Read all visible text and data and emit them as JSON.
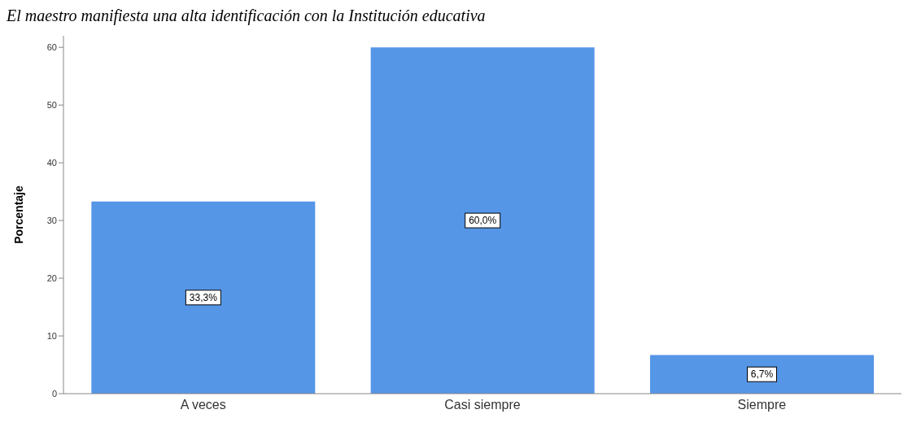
{
  "chart_data": {
    "type": "bar",
    "title": "El maestro manifiesta una alta identificación con la Institución educativa",
    "ylabel": "Porcentaje",
    "categories": [
      "A veces",
      "Casi siempre",
      "Siempre"
    ],
    "values": [
      33.3,
      60.0,
      6.7
    ],
    "value_labels": [
      "33,3%",
      "60,0%",
      "6,7%"
    ],
    "color": "#5596e6",
    "ylim": [
      0,
      62
    ],
    "yticks": [
      0,
      10,
      20,
      30,
      40,
      50,
      60
    ],
    "grid": false
  }
}
